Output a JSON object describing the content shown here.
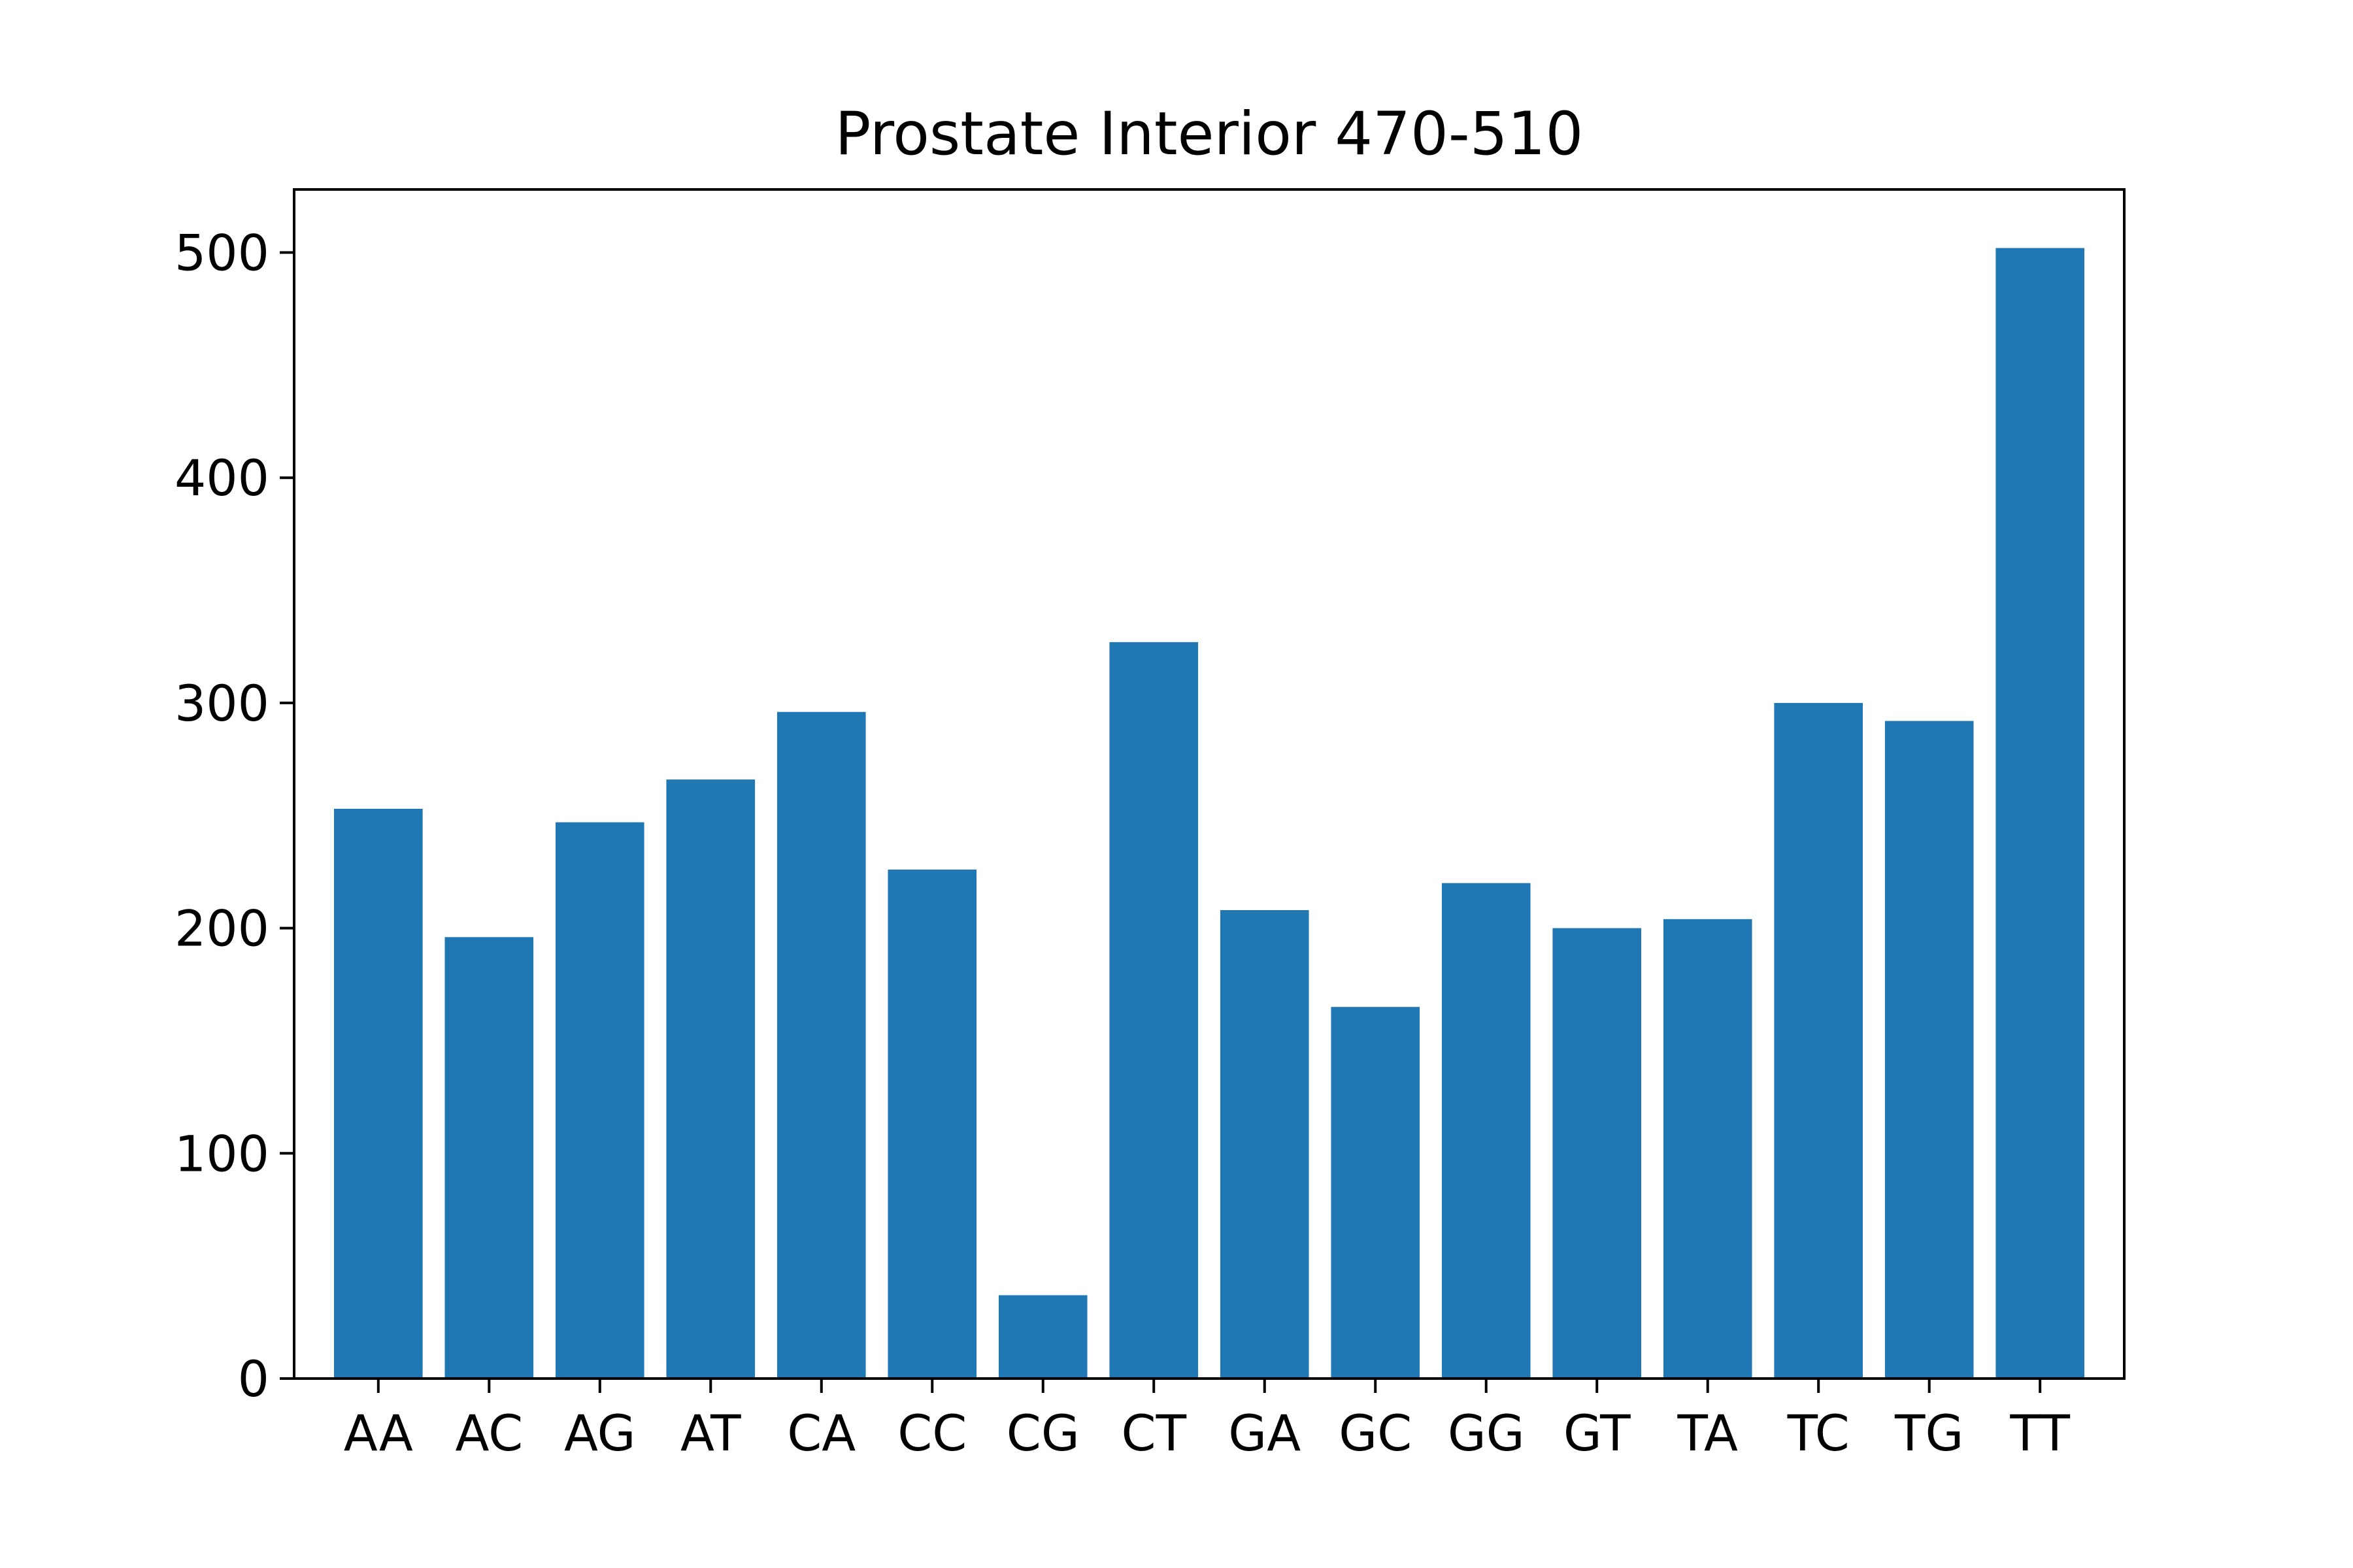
{
  "chart_data": {
    "type": "bar",
    "title": "Prostate Interior 470-510",
    "xlabel": "",
    "ylabel": "",
    "categories": [
      "AA",
      "AC",
      "AG",
      "AT",
      "CA",
      "CC",
      "CG",
      "CT",
      "GA",
      "GC",
      "GG",
      "GT",
      "TA",
      "TC",
      "TG",
      "TT"
    ],
    "values": [
      253,
      196,
      247,
      266,
      296,
      226,
      37,
      327,
      208,
      165,
      220,
      200,
      204,
      300,
      292,
      502
    ],
    "ylim": [
      0,
      528
    ],
    "yticks": [
      0,
      100,
      200,
      300,
      400,
      500
    ],
    "grid": false,
    "legend": "none",
    "colors": {
      "bar": "#1f77b4",
      "axis": "#000000",
      "background": "#ffffff"
    }
  }
}
